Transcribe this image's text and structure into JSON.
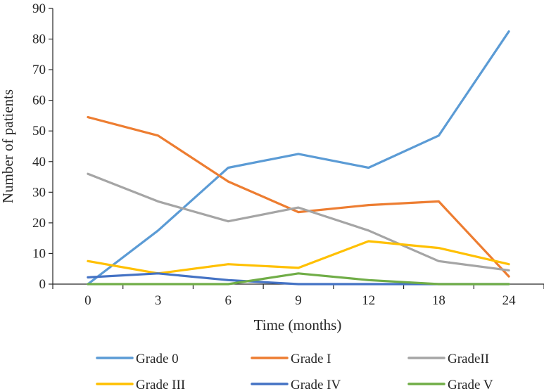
{
  "chart_data": {
    "type": "line",
    "title": "",
    "xlabel": "Time (months)",
    "ylabel": "Number of patients",
    "categories": [
      "0",
      "3",
      "6",
      "9",
      "12",
      "18",
      "24"
    ],
    "ylim": [
      0,
      90
    ],
    "yticks": [
      0,
      10,
      20,
      30,
      40,
      50,
      60,
      70,
      80,
      90
    ],
    "grid": false,
    "legend": "bottom",
    "series": [
      {
        "name": "Grade 0",
        "color": "#5B9BD5",
        "values": [
          0,
          17.5,
          38,
          42.5,
          38,
          48.5,
          82.5
        ]
      },
      {
        "name": "Grade I",
        "color": "#ED7D31",
        "values": [
          54.5,
          48.5,
          33.5,
          23.5,
          25.8,
          27,
          2.5
        ]
      },
      {
        "name": "GradeII",
        "color": "#A5A5A5",
        "values": [
          36,
          27,
          20.5,
          25,
          17.5,
          7.5,
          4.5
        ]
      },
      {
        "name": "Grade III",
        "color": "#FFC000",
        "values": [
          7.5,
          3.5,
          6.5,
          5.3,
          14,
          11.8,
          6.5
        ]
      },
      {
        "name": "Grade IV",
        "color": "#4472C4",
        "values": [
          2.2,
          3.5,
          1.3,
          0,
          0,
          0,
          0
        ]
      },
      {
        "name": "Grade V",
        "color": "#70AD47",
        "values": [
          0,
          0,
          0,
          3.5,
          1.3,
          0,
          0
        ]
      }
    ]
  }
}
